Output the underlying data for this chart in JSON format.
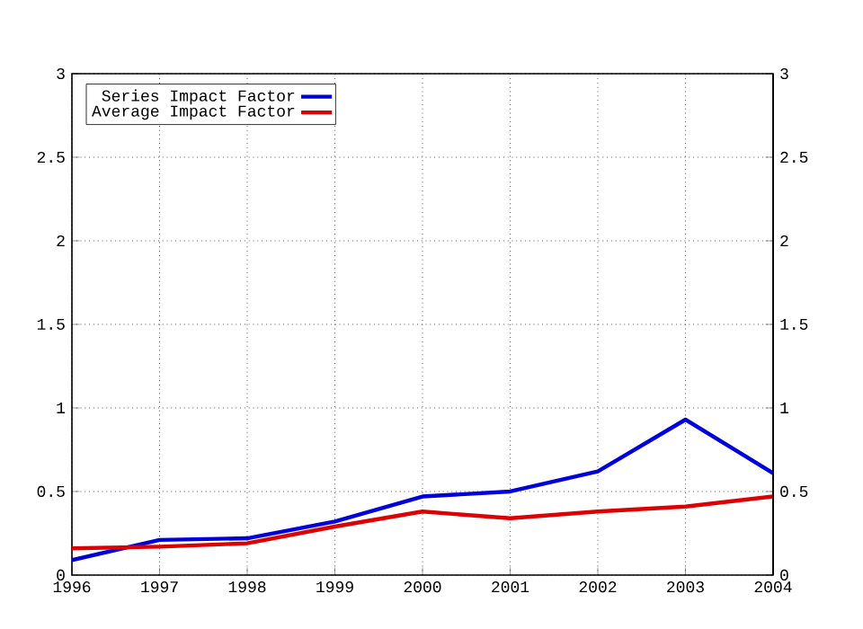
{
  "chart_data": {
    "type": "line",
    "x": [
      1996,
      1997,
      1998,
      1999,
      2000,
      2001,
      2002,
      2003,
      2004
    ],
    "series": [
      {
        "name": "Series Impact Factor",
        "color": "#0000dd",
        "values": [
          0.09,
          0.21,
          0.22,
          0.32,
          0.47,
          0.5,
          0.62,
          0.93,
          0.61
        ]
      },
      {
        "name": "Average Impact Factor",
        "color": "#dd0000",
        "values": [
          0.16,
          0.17,
          0.19,
          0.29,
          0.38,
          0.34,
          0.38,
          0.41,
          0.47
        ]
      }
    ],
    "xlim": [
      1996,
      2004
    ],
    "xticks": [
      1996,
      1997,
      1998,
      1999,
      2000,
      2001,
      2002,
      2003,
      2004
    ],
    "ylim": [
      0,
      3
    ],
    "yticks": [
      0,
      0.5,
      1,
      1.5,
      2,
      2.5,
      3
    ],
    "y2lim": [
      0,
      3
    ],
    "y2ticks": [
      0,
      0.5,
      1,
      1.5,
      2,
      2.5,
      3
    ],
    "grid": true,
    "legend": "top left",
    "marker": "none",
    "line_style": "solid"
  }
}
